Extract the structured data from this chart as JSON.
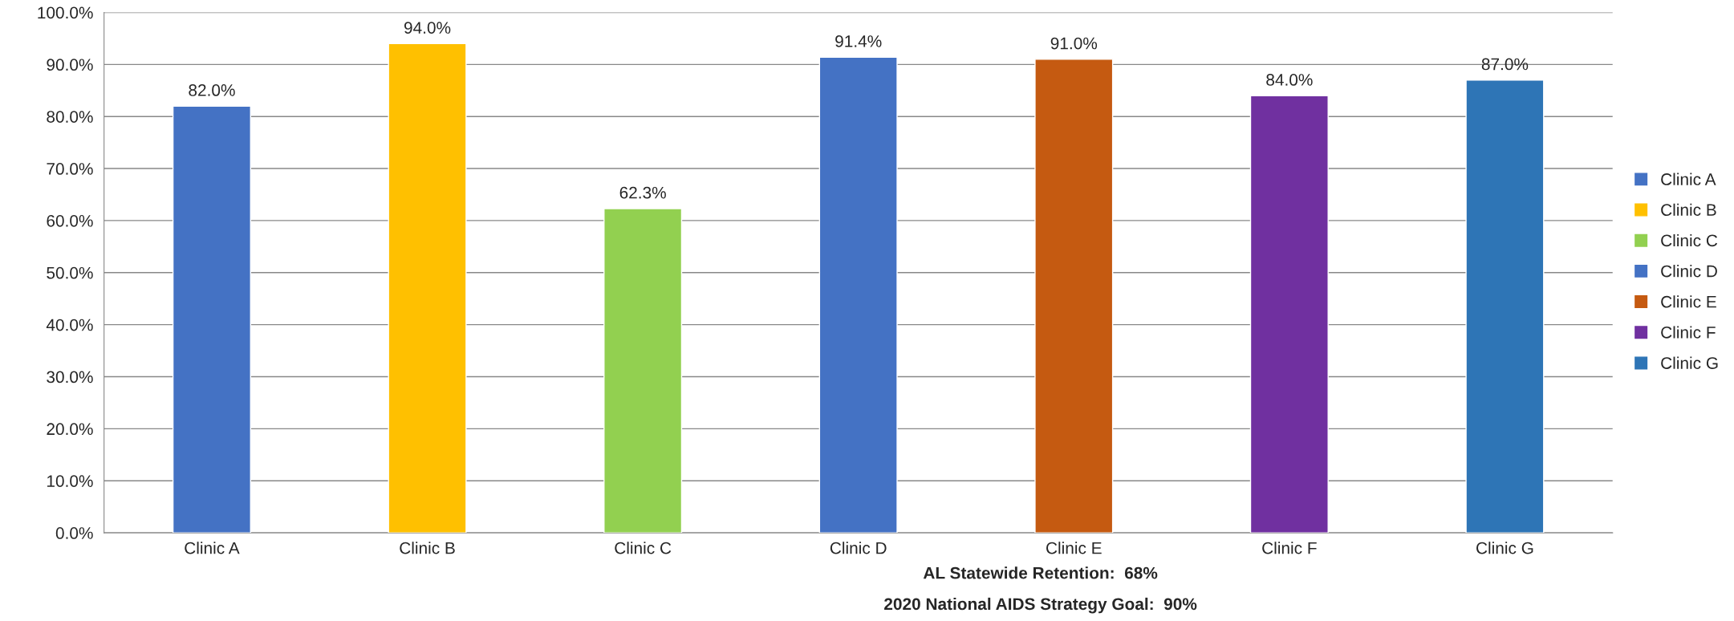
{
  "chart_data": {
    "type": "bar",
    "categories": [
      "Clinic A",
      "Clinic B",
      "Clinic C",
      "Clinic D",
      "Clinic E",
      "Clinic F",
      "Clinic G"
    ],
    "series": [
      {
        "name": "Clinic A",
        "color": "#4472c4",
        "values": [
          82.0,
          null,
          null,
          null,
          null,
          null,
          null
        ],
        "value_labels": [
          "82.0%",
          null,
          null,
          null,
          null,
          null,
          null
        ]
      },
      {
        "name": "Clinic B",
        "color": "#ffc000",
        "values": [
          null,
          94.0,
          null,
          null,
          null,
          null,
          null
        ],
        "value_labels": [
          null,
          "94.0%",
          null,
          null,
          null,
          null,
          null
        ]
      },
      {
        "name": "Clinic C",
        "color": "#92d050",
        "values": [
          null,
          null,
          62.3,
          null,
          null,
          null,
          null
        ],
        "value_labels": [
          null,
          null,
          "62.3%",
          null,
          null,
          null,
          null
        ]
      },
      {
        "name": "Clinic D",
        "color": "#4472c4",
        "values": [
          null,
          null,
          null,
          91.4,
          null,
          null,
          null
        ],
        "value_labels": [
          null,
          null,
          null,
          "91.4%",
          null,
          null,
          null
        ]
      },
      {
        "name": "Clinic E",
        "color": "#c55a11",
        "values": [
          null,
          null,
          null,
          null,
          91.0,
          null,
          null
        ],
        "value_labels": [
          null,
          null,
          null,
          null,
          "91.0%",
          null,
          null
        ]
      },
      {
        "name": "Clinic F",
        "color": "#7030a0",
        "values": [
          null,
          null,
          null,
          null,
          null,
          84.0,
          null
        ],
        "value_labels": [
          null,
          null,
          null,
          null,
          null,
          "84.0%",
          null
        ]
      },
      {
        "name": "Clinic G",
        "color": "#2e75b6",
        "values": [
          null,
          null,
          null,
          null,
          null,
          null,
          87.0
        ],
        "value_labels": [
          null,
          null,
          null,
          null,
          null,
          null,
          "87.0%"
        ]
      }
    ],
    "ylim": [
      0,
      100
    ],
    "yticks": [
      {
        "value": 0,
        "label": "0.0%"
      },
      {
        "value": 10,
        "label": "10.0%"
      },
      {
        "value": 20,
        "label": "20.0%"
      },
      {
        "value": 30,
        "label": "30.0%"
      },
      {
        "value": 40,
        "label": "40.0%"
      },
      {
        "value": 50,
        "label": "50.0%"
      },
      {
        "value": 60,
        "label": "60.0%"
      },
      {
        "value": 70,
        "label": "70.0%"
      },
      {
        "value": 80,
        "label": "80.0%"
      },
      {
        "value": 90,
        "label": "90.0%"
      },
      {
        "value": 100,
        "label": "100.0%"
      }
    ],
    "grid": "y",
    "legend": "right",
    "annotations": [
      "AL Statewide Retention:  68%",
      "2020 National AIDS Strategy Goal:  90%"
    ]
  }
}
